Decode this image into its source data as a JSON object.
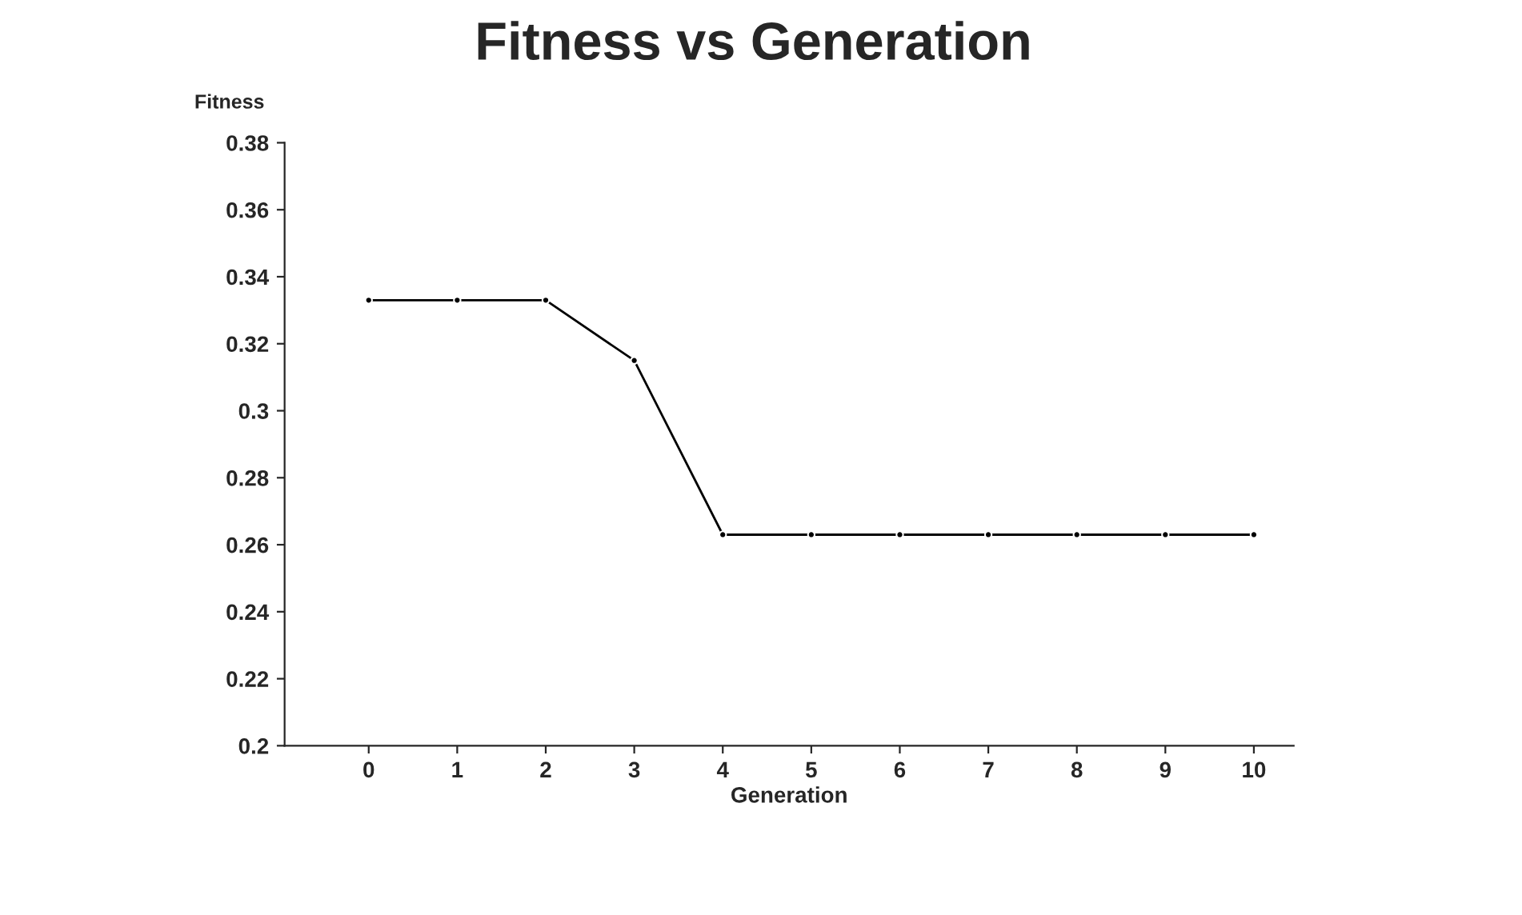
{
  "chart_data": {
    "type": "line",
    "title": "Fitness vs Generation",
    "xlabel": "Generation",
    "ylabel": "Fitness",
    "x": [
      0,
      1,
      2,
      3,
      4,
      5,
      6,
      7,
      8,
      9,
      10
    ],
    "series": [
      {
        "color": "#000000",
        "values": [
          0.333,
          0.333,
          0.333,
          0.315,
          0.263,
          0.263,
          0.263,
          0.263,
          0.263,
          0.263,
          0.263
        ]
      }
    ],
    "xlim": [
      -0.95,
      10.45
    ],
    "xticks": [
      0,
      1,
      2,
      3,
      4,
      5,
      6,
      7,
      8,
      9,
      10
    ],
    "ylim": [
      0.2,
      0.38
    ],
    "yticks": [
      0.2,
      0.22,
      0.24,
      0.26,
      0.28,
      0.3,
      0.32,
      0.34,
      0.36,
      0.38
    ],
    "grid": false,
    "legend": false,
    "marker": "circle",
    "line_style": "solid"
  }
}
